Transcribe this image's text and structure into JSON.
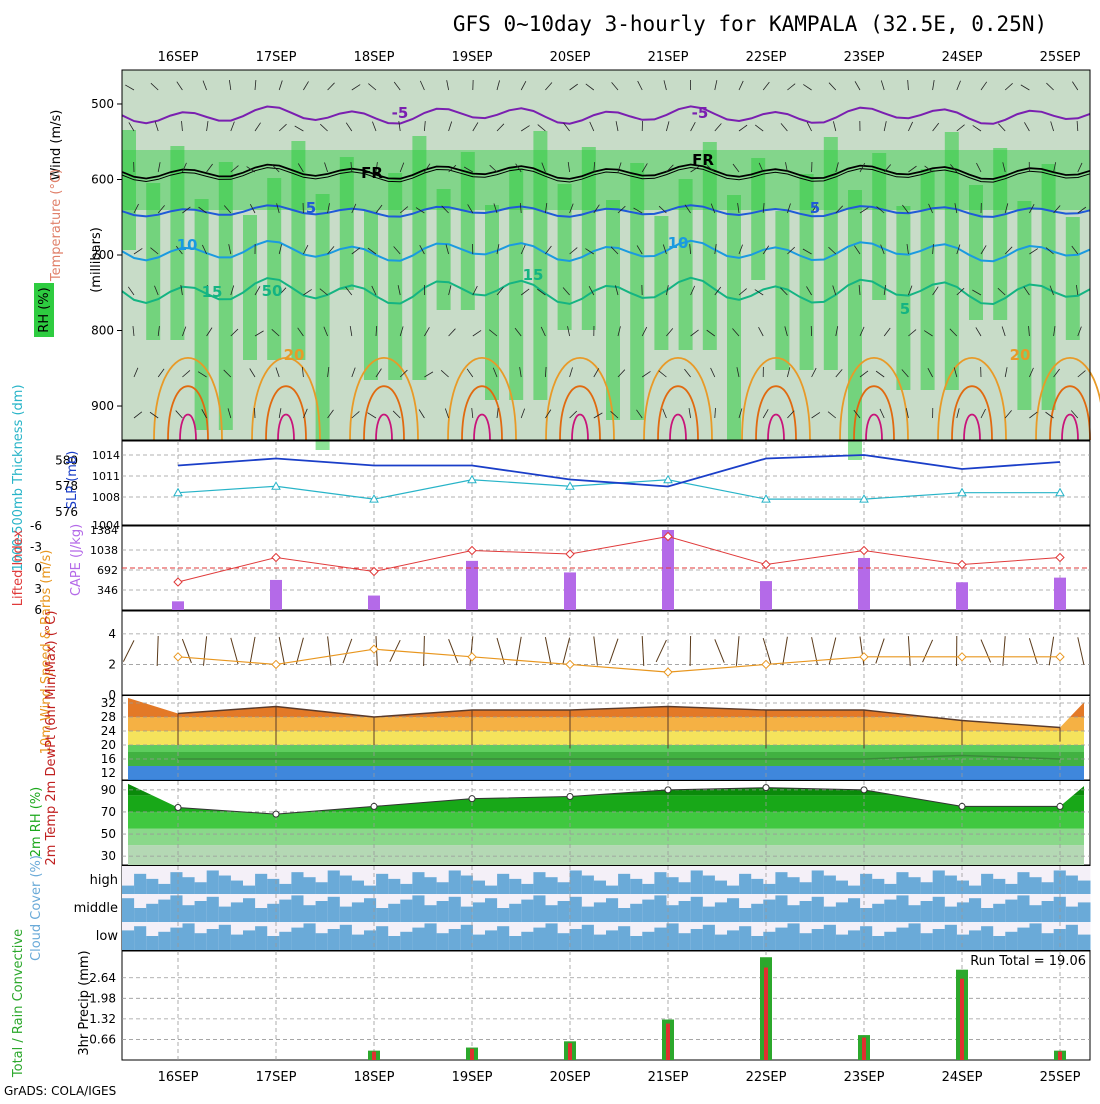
{
  "title": "GFS 0~10day 3-hourly for KAMPALA (32.5E, 0.25N)",
  "credit": "GrADS: COLA/IGES",
  "colors": {
    "rh_green": "#2ecc40",
    "rh_light": "#c8dcc8",
    "temp_purple": "#7a1fb0",
    "temp_blue": "#1f5ad8",
    "temp_cyan": "#1a9ae0",
    "temp_teal": "#14b482",
    "temp_orange": "#e89a28",
    "temp_deep_orange": "#e06a10",
    "temp_magenta": "#c8147a",
    "freezing": "#000000",
    "slp": "#1a3ec8",
    "thickness": "#28b4c8",
    "lifted_index": "#e03a3a",
    "cape": "#b46ae8",
    "wind10m": "#e8961e",
    "barbs": "#5a3a1a",
    "cloud": "#6aaad8",
    "cloud_clear": "#f4f0f8",
    "precip_total": "#2ca82c",
    "precip_conv": "#e03030"
  },
  "days": [
    "16SEP",
    "17SEP",
    "18SEP",
    "19SEP",
    "20SEP",
    "21SEP",
    "22SEP",
    "23SEP",
    "24SEP",
    "25SEP"
  ],
  "panels": {
    "upper": {
      "ylabel_wind": "Wind (m/s)",
      "ylabel_temp": "Temperature (°C)",
      "ylabel_rh": "RH (%)",
      "ylabel_units": "(millibars)",
      "ticks": [
        "500",
        "600",
        "700",
        "800",
        "900"
      ],
      "contour_labels": [
        "-5",
        "-5",
        "FR",
        "FR",
        "5",
        "5",
        "10",
        "10",
        "15",
        "15",
        "20",
        "20",
        "5",
        "50"
      ]
    },
    "slp": {
      "ylabel_left": "1000-500mb Thickness (dm)",
      "ylabel_right": "SLP (mb)",
      "left_ticks": [
        "576",
        "578",
        "580"
      ],
      "right_ticks": [
        "1004",
        "1008",
        "1011",
        "1014"
      ]
    },
    "li": {
      "ylabel_left": "Lifted Index",
      "ylabel_right": "CAPE (J/kg)",
      "left_ticks": [
        "6",
        "3",
        "0",
        "-3",
        "-6"
      ],
      "right_ticks": [
        "346",
        "692",
        "1038",
        "1384"
      ]
    },
    "wind": {
      "ylabel": "10m Wind Speed & Barbs (m/s)",
      "ticks": [
        "0",
        "2",
        "4"
      ]
    },
    "temp": {
      "ylabel": "2m Temp 2m DewPt (6hr Min/Max) (°C)",
      "ticks": [
        "12",
        "16",
        "20",
        "24",
        "28",
        "32"
      ]
    },
    "rh": {
      "ylabel": "2m RH (%)",
      "ticks": [
        "30",
        "50",
        "70",
        "90"
      ]
    },
    "cloud": {
      "ylabel": "Cloud Cover (%)",
      "levels": [
        "high",
        "middle",
        "low"
      ]
    },
    "precip": {
      "ylabel_left": "Total / Rain Convective",
      "ylabel_right": "3hr Precip (mm)",
      "ticks": [
        "0.66",
        "1.32",
        "1.98",
        "2.64"
      ],
      "run_total": "Run Total = 19.06"
    }
  },
  "chart_data": [
    {
      "type": "line",
      "title": "1000-500mb Thickness and SLP",
      "x": [
        "16SEP",
        "17SEP",
        "18SEP",
        "19SEP",
        "20SEP",
        "21SEP",
        "22SEP",
        "23SEP",
        "24SEP",
        "25SEP"
      ],
      "series": [
        {
          "name": "SLP (mb)",
          "values": [
            1012.5,
            1013.5,
            1012.5,
            1012.5,
            1010.5,
            1009.5,
            1013.5,
            1014.0,
            1012.0,
            1013.0
          ]
        },
        {
          "name": "1000-500mb Thickness (dm)",
          "values": [
            577.5,
            578.0,
            577.0,
            578.5,
            578.0,
            578.5,
            577.0,
            577.0,
            577.5,
            577.5
          ]
        }
      ]
    },
    {
      "type": "bar",
      "title": "CAPE (J/kg) and Lifted Index",
      "x": [
        "16SEP",
        "17SEP",
        "18SEP",
        "19SEP",
        "20SEP",
        "21SEP",
        "22SEP",
        "23SEP",
        "24SEP",
        "25SEP"
      ],
      "series": [
        {
          "name": "CAPE (J/kg)",
          "values": [
            150,
            520,
            250,
            850,
            650,
            1384,
            500,
            900,
            480,
            560
          ]
        },
        {
          "name": "Lifted Index",
          "values": [
            2.0,
            -1.5,
            0.5,
            -2.5,
            -2.0,
            -4.5,
            -0.5,
            -2.5,
            -0.5,
            -1.5
          ]
        }
      ]
    },
    {
      "type": "line",
      "title": "10m Wind Speed (m/s)",
      "x": [
        "16SEP",
        "17SEP",
        "18SEP",
        "19SEP",
        "20SEP",
        "21SEP",
        "22SEP",
        "23SEP",
        "24SEP",
        "25SEP"
      ],
      "values": [
        2.5,
        2.0,
        3.0,
        2.5,
        2.0,
        1.5,
        2.0,
        2.5,
        2.5,
        2.5
      ]
    },
    {
      "type": "area",
      "title": "2m Temp / 2m DewPt (°C)",
      "x": [
        "16SEP",
        "17SEP",
        "18SEP",
        "19SEP",
        "20SEP",
        "21SEP",
        "22SEP",
        "23SEP",
        "24SEP",
        "25SEP"
      ],
      "series": [
        {
          "name": "2m Temp max",
          "values": [
            29,
            31,
            28,
            30,
            30,
            31,
            30,
            30,
            27,
            25
          ]
        },
        {
          "name": "2m Temp min",
          "values": [
            20,
            20,
            20,
            20,
            19,
            19,
            19,
            19,
            20,
            21
          ]
        },
        {
          "name": "2m DewPt",
          "values": [
            16,
            16,
            16,
            16,
            16,
            16,
            16,
            16,
            17,
            16
          ]
        }
      ]
    },
    {
      "type": "area",
      "title": "2m RH (%)",
      "x": [
        "16SEP",
        "17SEP",
        "18SEP",
        "19SEP",
        "20SEP",
        "21SEP",
        "22SEP",
        "23SEP",
        "24SEP",
        "25SEP"
      ],
      "series": [
        {
          "name": "RH max",
          "values": [
            74,
            68,
            75,
            82,
            84,
            90,
            92,
            90,
            75,
            75
          ]
        },
        {
          "name": "RH min",
          "values": [
            30,
            40,
            40,
            40,
            40,
            48,
            50,
            50,
            55,
            50
          ]
        }
      ]
    },
    {
      "type": "bar",
      "title": "3hr Precip (mm)",
      "x": [
        "16SEP",
        "17SEP",
        "18SEP",
        "19SEP",
        "20SEP",
        "21SEP",
        "22SEP",
        "23SEP",
        "24SEP",
        "25SEP"
      ],
      "values": [
        0.0,
        0.0,
        0.3,
        0.4,
        0.6,
        1.3,
        3.3,
        0.8,
        2.9,
        0.3
      ]
    }
  ]
}
